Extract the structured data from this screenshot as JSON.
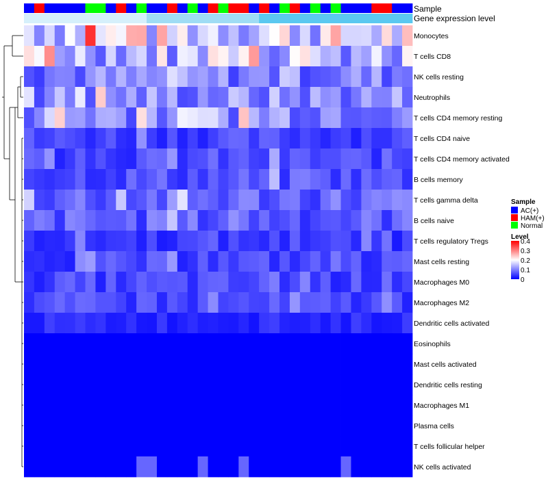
{
  "chart_data": {
    "type": "heatmap",
    "title": "",
    "row_labels": [
      "Monocytes",
      "T cells CD8",
      "NK cells resting",
      "Neutrophils",
      "T cells CD4 memory resting",
      "T cells CD4 naive",
      "T cells CD4 memory activated",
      "B cells memory",
      "T cells gamma delta",
      "B cells naive",
      "T cells regulatory  Tregs",
      "Mast cells resting",
      "Macrophages M0",
      "Macrophages M2",
      "Dendritic cells activated",
      "Eosinophils",
      "Mast cells activated",
      "Dendritic cells resting",
      "Macrophages M1",
      "Plasma cells",
      "T cells follicular helper",
      "NK cells activated"
    ],
    "row_scale": [
      1.0,
      0.85,
      0.55,
      0.6,
      0.7,
      0.3,
      0.32,
      0.35,
      0.45,
      0.4,
      0.25,
      0.3,
      0.3,
      0.3,
      0.18,
      0,
      0,
      0,
      0,
      0,
      0,
      0.22
    ],
    "sample_groups": [
      "AC(+)",
      "HAM(+)",
      "AC(+)",
      "AC(+)",
      "AC(+)",
      "AC(+)",
      "Normal",
      "Normal",
      "AC(+)",
      "HAM(+)",
      "AC(+)",
      "Normal",
      "AC(+)",
      "AC(+)",
      "HAM(+)",
      "AC(+)",
      "Normal",
      "AC(+)",
      "HAM(+)",
      "Normal",
      "HAM(+)",
      "HAM(+)",
      "AC(+)",
      "HAM(+)",
      "AC(+)",
      "Normal",
      "HAM(+)",
      "AC(+)",
      "Normal",
      "AC(+)",
      "Normal",
      "AC(+)",
      "AC(+)",
      "AC(+)",
      "HAM(+)",
      "HAM(+)",
      "AC(+)",
      "AC(+)"
    ],
    "annotations": {
      "sample_label": "Sample",
      "gene_label": "Gene expression level"
    },
    "legend_sample": {
      "title": "Sample",
      "entries": [
        {
          "label": "AC(+)",
          "color": "#0000ff"
        },
        {
          "label": "HAM(+)",
          "color": "#ff0000"
        },
        {
          "label": "Normal",
          "color": "#00ff00"
        }
      ]
    },
    "legend_level": {
      "title": "Level",
      "range": [
        0,
        0.4
      ],
      "ticks": [
        "0.4",
        "0.3",
        "0.2",
        "0.1",
        "0"
      ],
      "tick_values": [
        0.4,
        0.3,
        0.2,
        0.1,
        0
      ]
    },
    "colors": {
      "low": "#0000ff",
      "mid": "#ffffff",
      "high": "#ff0000",
      "gene_bar": "#5bc8f0",
      "dendrogram": "#000000"
    }
  }
}
